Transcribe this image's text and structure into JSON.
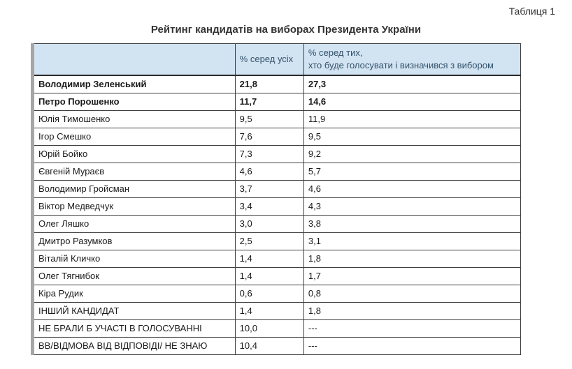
{
  "page": {
    "caption": "Таблиця 1",
    "title": "Рейтинг кандидатів на виборах Президента України"
  },
  "table": {
    "headers": {
      "name": "",
      "all": "% серед усіх",
      "decided": "% серед тих,\nхто буде голосувати і визначився з вибором"
    },
    "rows": [
      {
        "name": "Володимир Зеленський",
        "all": "21,8",
        "decided": "27,3",
        "bold": true
      },
      {
        "name": "Петро Порошенко",
        "all": "11,7",
        "decided": "14,6",
        "bold": true
      },
      {
        "name": "Юлія Тимошенко",
        "all": "9,5",
        "decided": "11,9",
        "bold": false
      },
      {
        "name": "Ігор Смешко",
        "all": "7,6",
        "decided": "9,5",
        "bold": false
      },
      {
        "name": "Юрій Бойко",
        "all": "7,3",
        "decided": "9,2",
        "bold": false
      },
      {
        "name": "Євгеній Мураєв",
        "all": "4,6",
        "decided": "5,7",
        "bold": false
      },
      {
        "name": "Володимир Гройсман",
        "all": "3,7",
        "decided": "4,6",
        "bold": false
      },
      {
        "name": "Віктор Медведчук",
        "all": "3,4",
        "decided": "4,3",
        "bold": false
      },
      {
        "name": "Олег Ляшко",
        "all": "3,0",
        "decided": "3,8",
        "bold": false
      },
      {
        "name": "Дмитро Разумков",
        "all": "2,5",
        "decided": "3,1",
        "bold": false
      },
      {
        "name": "Віталій Кличко",
        "all": "1,4",
        "decided": "1,8",
        "bold": false
      },
      {
        "name": "Олег Тягнибок",
        "all": "1,4",
        "decided": "1,7",
        "bold": false
      },
      {
        "name": "Кіра Рудик",
        "all": "0,6",
        "decided": "0,8",
        "bold": false
      },
      {
        "name": "ІНШИЙ КАНДИДАТ",
        "all": "1,4",
        "decided": "1,8",
        "bold": false
      },
      {
        "name": "НЕ БРАЛИ Б УЧАСТІ В ГОЛОСУВАННІ",
        "all": "10,0",
        "decided": "---",
        "bold": false
      },
      {
        "name": "ВВ/ВІДМОВА ВІД ВІДПОВІДІ/ НЕ ЗНАЮ",
        "all": "10,4",
        "decided": "---",
        "bold": false
      }
    ],
    "colors": {
      "header_background": "#d2e3f2",
      "header_text": "#33536b",
      "border": "#3f3f3f",
      "left_edge": "#a6a6a6"
    }
  }
}
